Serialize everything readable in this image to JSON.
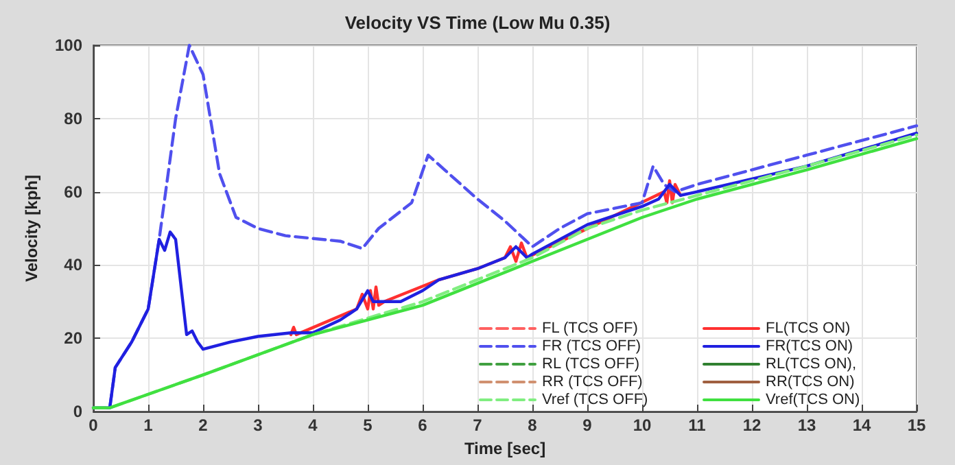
{
  "chart_data": {
    "type": "line",
    "title": "Velocity VS Time (Low Mu 0.35)",
    "xlabel": "Time [sec]",
    "ylabel": "Velocity [kph]",
    "xlim": [
      0,
      15
    ],
    "xticks": [
      0,
      1,
      2,
      3,
      4,
      5,
      6,
      7,
      8,
      9,
      10,
      11,
      12,
      13,
      14,
      15
    ],
    "ylim": [
      0,
      100
    ],
    "yticks": [
      0,
      20,
      40,
      60,
      80,
      100
    ],
    "grid": true,
    "legend": "bottom right",
    "marker": "none",
    "series": [
      {
        "name": "FL (TCS OFF)",
        "color": "#ff6060",
        "line_style": "dashed"
      },
      {
        "name": "FL(TCS ON)",
        "color": "#ff3030",
        "line_style": "solid",
        "x": [
          3.6,
          3.65,
          3.7,
          4.8,
          4.9,
          5,
          5.05,
          5.1,
          5.15,
          5.2,
          5.3,
          6.3,
          7,
          7.5,
          7.6,
          7.7,
          7.8,
          7.9,
          10.4,
          10.45,
          10.5,
          10.55,
          10.6,
          10.7
        ],
        "values": [
          21,
          23,
          21,
          28,
          32,
          28,
          33,
          28,
          34,
          29,
          30,
          36,
          39,
          42,
          45,
          41,
          46,
          42,
          60,
          57,
          63,
          57,
          62,
          59
        ]
      },
      {
        "name": "FR (TCS OFF)",
        "color": "#5050ee",
        "line_style": "dashed",
        "x": [
          0,
          0.3,
          0.4,
          0.7,
          1,
          1.2,
          1.5,
          1.75,
          2,
          2.3,
          2.6,
          3,
          3.5,
          4.5,
          4.9,
          5.2,
          5.8,
          6.1,
          6.4,
          7,
          7.5,
          8,
          8.5,
          9,
          10,
          10.2,
          10.4,
          10.6,
          11,
          13,
          15
        ],
        "values": [
          1,
          1,
          12,
          19,
          28,
          47,
          80,
          100,
          92,
          65,
          53,
          50,
          48,
          46.5,
          44.5,
          50,
          57,
          70,
          66,
          58,
          52,
          45,
          50,
          54,
          57,
          67,
          62,
          60,
          62,
          70,
          78
        ]
      },
      {
        "name": "FR(TCS ON)",
        "color": "#2020e0",
        "line_style": "solid",
        "x": [
          0,
          0.3,
          0.4,
          0.7,
          1,
          1.2,
          1.3,
          1.4,
          1.5,
          1.7,
          1.8,
          1.9,
          2,
          2.5,
          3,
          3.6,
          4,
          4.5,
          4.8,
          5,
          5.1,
          5.3,
          5.6,
          6,
          6.3,
          7,
          7.5,
          7.7,
          7.9,
          8,
          9,
          10,
          10.3,
          10.5,
          10.7,
          11,
          13,
          15
        ],
        "values": [
          1,
          1,
          12,
          19,
          28,
          47,
          44,
          49,
          47,
          21,
          22,
          19,
          17,
          19,
          20.5,
          21.5,
          21.5,
          25,
          28,
          33,
          30,
          30,
          30,
          33,
          36,
          39,
          42,
          45,
          42,
          43,
          51,
          56,
          58,
          62,
          59,
          60,
          67,
          76
        ]
      },
      {
        "name": "RL (TCS OFF)",
        "color": "#40a040",
        "line_style": "dashed"
      },
      {
        "name": "RL(TCS ON),",
        "color": "#308030",
        "line_style": "solid"
      },
      {
        "name": "RR (TCS OFF)",
        "color": "#d09070",
        "line_style": "dashed"
      },
      {
        "name": "RR(TCS ON)",
        "color": "#a06040",
        "line_style": "solid"
      },
      {
        "name": "Vref (TCS OFF)",
        "color": "#80ee80",
        "line_style": "dashed",
        "x": [
          0,
          0.3,
          2,
          4,
          6,
          8,
          9,
          10,
          11,
          13,
          15
        ],
        "values": [
          1,
          1,
          10,
          21,
          30,
          42,
          50,
          55,
          59,
          67,
          75.5
        ]
      },
      {
        "name": "Vref(TCS ON)",
        "color": "#40e040",
        "line_style": "solid",
        "x": [
          0,
          0.3,
          2,
          4,
          6,
          8,
          10,
          11,
          13,
          15
        ],
        "values": [
          1,
          1,
          10,
          21,
          29,
          41,
          53,
          58,
          66,
          74.5
        ]
      }
    ]
  }
}
